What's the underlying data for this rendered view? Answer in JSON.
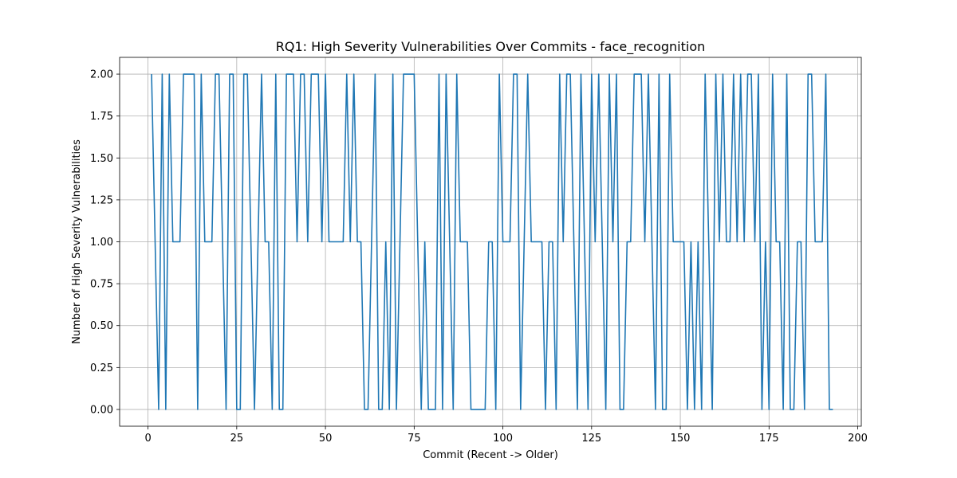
{
  "chart_data": {
    "type": "line",
    "title": "RQ1: High Severity Vulnerabilities Over Commits - face_recognition",
    "xlabel": "Commit (Recent -> Older)",
    "ylabel": "Number of High Severity Vulnerabilities",
    "xlim": [
      -8,
      201
    ],
    "ylim": [
      -0.1,
      2.1
    ],
    "x_ticks": [
      0,
      25,
      50,
      75,
      100,
      125,
      150,
      175,
      200
    ],
    "y_ticks": [
      0.0,
      0.25,
      0.5,
      0.75,
      1.0,
      1.25,
      1.5,
      1.75,
      2.0
    ],
    "x_tick_labels": [
      "0",
      "25",
      "50",
      "75",
      "100",
      "125",
      "150",
      "175",
      "200"
    ],
    "y_tick_labels": [
      "0.00",
      "0.25",
      "0.50",
      "0.75",
      "1.00",
      "1.25",
      "1.50",
      "1.75",
      "2.00"
    ],
    "grid": true,
    "line_color": "#1f77b4",
    "series": [
      {
        "x_start": 1,
        "values": [
          2,
          1,
          0,
          2,
          0,
          2,
          1,
          1,
          1,
          2,
          2,
          2,
          2,
          0,
          2,
          1,
          1,
          1,
          2,
          2,
          1,
          0,
          2,
          2,
          0,
          0,
          2,
          2,
          1,
          0,
          1,
          2,
          1,
          1,
          0,
          2,
          0,
          0,
          2,
          2,
          2,
          1,
          2,
          2,
          1,
          2,
          2,
          2,
          1,
          2,
          1,
          1,
          1,
          1,
          1,
          2,
          1,
          2,
          1,
          1,
          0,
          0,
          1,
          2,
          0,
          0,
          1,
          0,
          2,
          0,
          1,
          2,
          2,
          2,
          2,
          1,
          0,
          1,
          0,
          0,
          0,
          2,
          0,
          2,
          1,
          0,
          2,
          1,
          1,
          1,
          0,
          0,
          0,
          0,
          0,
          1,
          1,
          0,
          2,
          1,
          1,
          1,
          2,
          2,
          0,
          1,
          2,
          1,
          1,
          1,
          1,
          0,
          1,
          1,
          0,
          2,
          1,
          2,
          2,
          1,
          0,
          2,
          1,
          0,
          2,
          1,
          2,
          1,
          0,
          2,
          1,
          2,
          0,
          0,
          1,
          1,
          2,
          2,
          2,
          1,
          2,
          1,
          0,
          2,
          0,
          0,
          2,
          1,
          1,
          1,
          1,
          0,
          1,
          0,
          1,
          0,
          2,
          1,
          0,
          2,
          1,
          2,
          1,
          1,
          2,
          1,
          2,
          1,
          2,
          2,
          1,
          2,
          0,
          1,
          0,
          2,
          1,
          1,
          0,
          2,
          0,
          0,
          1,
          1,
          0,
          2,
          2,
          1,
          1,
          1,
          2,
          0,
          0
        ]
      }
    ]
  }
}
